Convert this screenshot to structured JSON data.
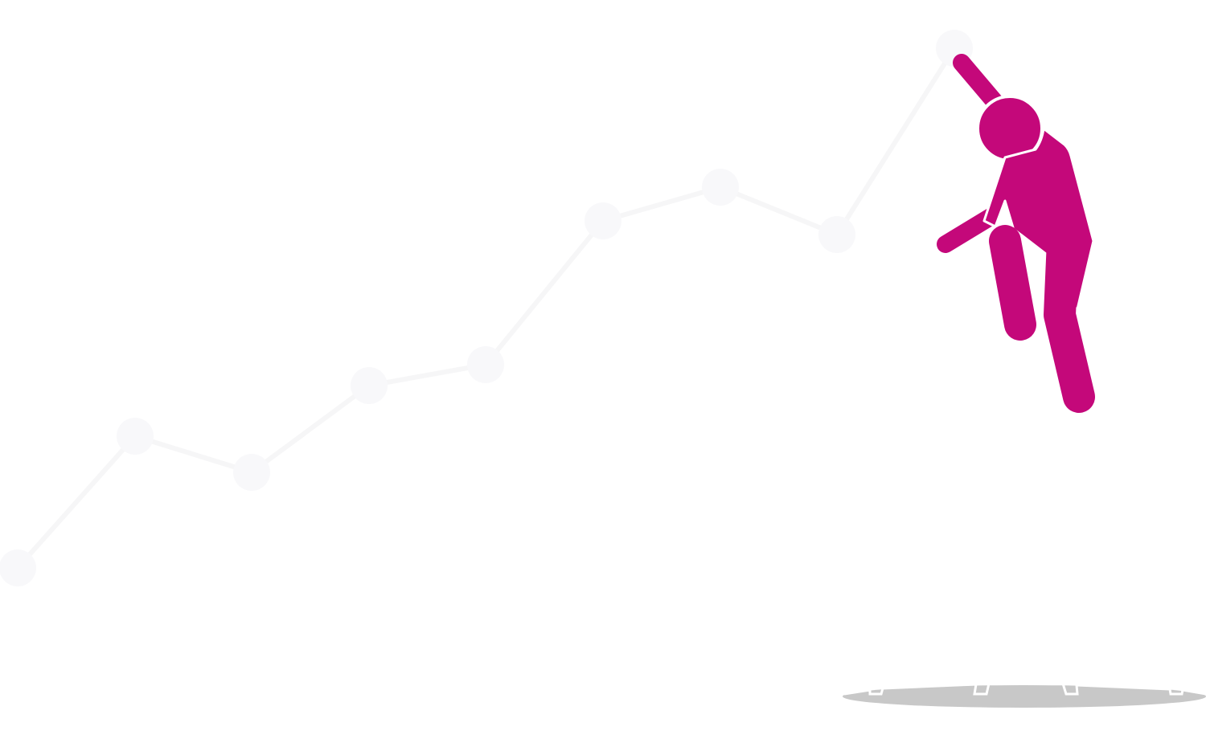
{
  "illustration": {
    "subject": "stick-figure-jumping",
    "colors": {
      "figure": "#c4087a",
      "trend_line": "#f6f6f7",
      "trend_point": "#f8f8fa",
      "shadow": "#c8c8c8",
      "background": "#ffffff"
    },
    "trend": {
      "direction": "rising",
      "point_count": 9
    }
  }
}
